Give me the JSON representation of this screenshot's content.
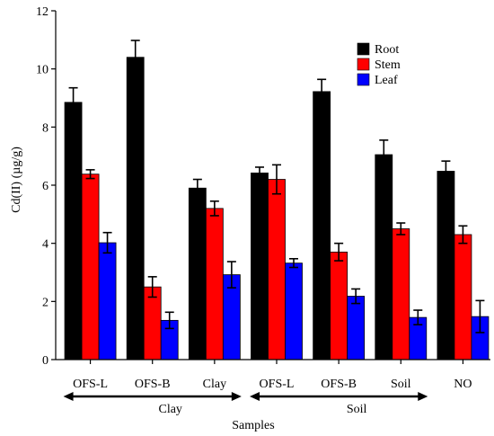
{
  "chart_data": {
    "type": "bar",
    "title": "",
    "xlabel": "Samples",
    "ylabel": "Cd(II) (µg/g)",
    "ylim": [
      0,
      12
    ],
    "yticks": [
      0,
      2,
      4,
      6,
      8,
      10,
      12
    ],
    "grid": false,
    "legend_position": "top-right",
    "categories": [
      "OFS-L",
      "OFS-B",
      "Clay",
      "OFS-L",
      "OFS-B",
      "Soil",
      "NO"
    ],
    "series": [
      {
        "name": "Root",
        "color": "#000000",
        "values": [
          8.85,
          10.4,
          5.9,
          6.42,
          9.22,
          7.05,
          6.48
        ],
        "errors": [
          0.5,
          0.58,
          0.3,
          0.2,
          0.42,
          0.5,
          0.35
        ]
      },
      {
        "name": "Stem",
        "color": "#ff0000",
        "values": [
          6.38,
          2.5,
          5.2,
          6.2,
          3.7,
          4.5,
          4.3
        ],
        "errors": [
          0.15,
          0.35,
          0.25,
          0.5,
          0.3,
          0.2,
          0.3
        ]
      },
      {
        "name": "Leaf",
        "color": "#0000ff",
        "values": [
          4.02,
          1.35,
          2.92,
          3.32,
          2.18,
          1.45,
          1.48
        ],
        "errors": [
          0.35,
          0.28,
          0.45,
          0.15,
          0.25,
          0.25,
          0.55
        ]
      }
    ],
    "groups": [
      {
        "label": "Clay",
        "from": 0,
        "to": 2
      },
      {
        "label": "Soil",
        "from": 3,
        "to": 5
      }
    ]
  }
}
